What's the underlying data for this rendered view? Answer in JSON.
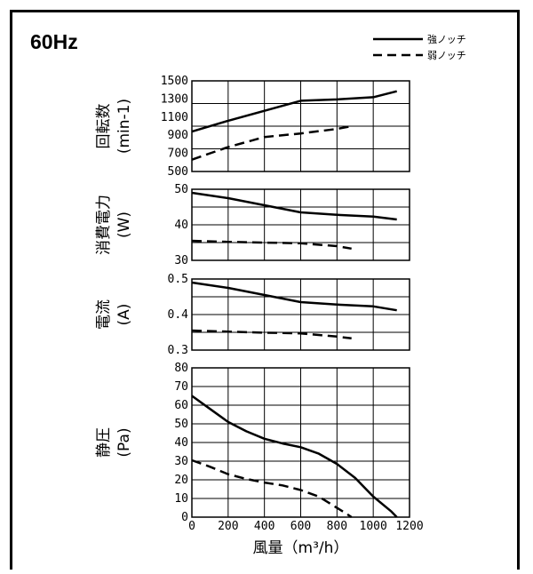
{
  "header": {
    "frequency": "60Hz"
  },
  "legend": [
    {
      "label": "強ノッチ",
      "style": "solid"
    },
    {
      "label": "弱ノッチ",
      "style": "dashed"
    }
  ],
  "x_axis": {
    "label": "風量（m³/h）",
    "ticks": [
      "0",
      "200",
      "400",
      "600",
      "800",
      "1000",
      "1200"
    ],
    "range": [
      0,
      1200
    ]
  },
  "chart_data": [
    {
      "type": "line",
      "ylabel": "回転数",
      "yunit": "(min-1)",
      "ylim": [
        500,
        1500
      ],
      "yticks": [
        "1500",
        "1300",
        "1100",
        "900",
        "700",
        "500"
      ],
      "ytick_values": [
        1500,
        1300,
        1100,
        900,
        700,
        500
      ],
      "series": [
        {
          "name": "強ノッチ",
          "x": [
            0,
            200,
            400,
            600,
            800,
            1000,
            1130
          ],
          "y": [
            940,
            1060,
            1170,
            1280,
            1295,
            1320,
            1385
          ]
        },
        {
          "name": "弱ノッチ",
          "x": [
            0,
            200,
            400,
            600,
            800,
            880
          ],
          "y": [
            630,
            770,
            880,
            920,
            970,
            1000
          ]
        }
      ]
    },
    {
      "type": "line",
      "ylabel": "消費電力",
      "yunit": "(W)",
      "ylim": [
        30,
        50
      ],
      "yticks": [
        "50",
        "40",
        "30"
      ],
      "ytick_values": [
        50,
        40,
        30
      ],
      "series": [
        {
          "name": "強ノッチ",
          "x": [
            0,
            200,
            400,
            600,
            800,
            1000,
            1130
          ],
          "y": [
            49,
            47.5,
            45.5,
            43.5,
            42.8,
            42.3,
            41.5
          ]
        },
        {
          "name": "弱ノッチ",
          "x": [
            0,
            200,
            400,
            600,
            800,
            880
          ],
          "y": [
            35.5,
            35.2,
            35,
            34.8,
            34,
            33.3
          ]
        }
      ]
    },
    {
      "type": "line",
      "ylabel": "電流",
      "yunit": "(A)",
      "ylim": [
        0.3,
        0.5
      ],
      "yticks": [
        "0.5",
        "0.4",
        "0.3"
      ],
      "ytick_values": [
        0.5,
        0.4,
        0.3
      ],
      "series": [
        {
          "name": "強ノッチ",
          "x": [
            0,
            200,
            400,
            600,
            800,
            1000,
            1130
          ],
          "y": [
            0.49,
            0.475,
            0.455,
            0.435,
            0.428,
            0.423,
            0.412
          ]
        },
        {
          "name": "弱ノッチ",
          "x": [
            0,
            200,
            400,
            600,
            800,
            880
          ],
          "y": [
            0.355,
            0.352,
            0.349,
            0.347,
            0.338,
            0.333
          ]
        }
      ]
    },
    {
      "type": "line",
      "ylabel": "静圧",
      "yunit": "(Pa)",
      "ylim": [
        0,
        80
      ],
      "yticks": [
        "80",
        "70",
        "60",
        "50",
        "40",
        "30",
        "20",
        "10",
        "0"
      ],
      "ytick_values": [
        80,
        70,
        60,
        50,
        40,
        30,
        20,
        10,
        0
      ],
      "series": [
        {
          "name": "強ノッチ",
          "x": [
            0,
            100,
            200,
            300,
            400,
            500,
            600,
            700,
            800,
            900,
            1000,
            1100,
            1130
          ],
          "y": [
            65,
            58,
            51,
            46,
            42,
            39.5,
            37.5,
            34,
            28.5,
            21,
            11,
            3,
            0
          ]
        },
        {
          "name": "弱ノッチ",
          "x": [
            0,
            100,
            200,
            300,
            400,
            500,
            600,
            700,
            800,
            850,
            880
          ],
          "y": [
            30.5,
            27,
            23,
            20.5,
            18.5,
            17,
            14.5,
            11,
            5,
            2,
            0
          ]
        }
      ]
    }
  ]
}
